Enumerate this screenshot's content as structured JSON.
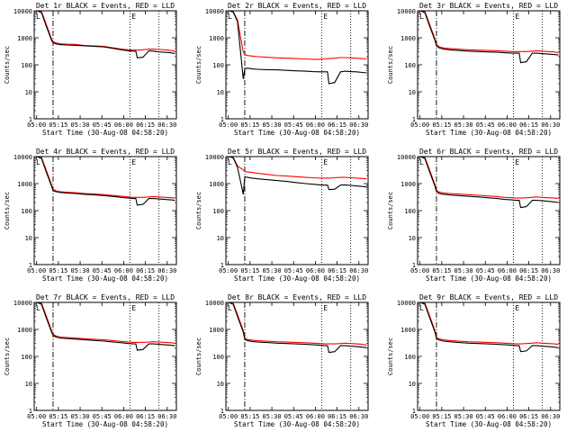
{
  "chart_data": [
    {
      "type": "line",
      "title": "Det 1r BLACK = Events, RED = LLD",
      "xlabel": "Start Time (30-Aug-08 04:58:20)",
      "ylabel": "Counts/sec",
      "x_ticks": [
        "05:00",
        "05:15",
        "05:30",
        "05:45",
        "06:00",
        "06:15",
        "06:30"
      ],
      "y_ticks": [
        "1",
        "10",
        "100",
        "1000",
        "10000"
      ],
      "xlim_minutes": [
        0,
        98
      ],
      "ylim": [
        1,
        10000
      ],
      "yscale": "log",
      "x": [
        0,
        2,
        5,
        8,
        12,
        13,
        15,
        18,
        22,
        28,
        35,
        42,
        48,
        55,
        60,
        65,
        68,
        70,
        71,
        75,
        79,
        82,
        86,
        90,
        94,
        97
      ],
      "series": [
        {
          "name": "Events",
          "color": "#000000",
          "values": [
            10000,
            10000,
            8500,
            3000,
            800,
            650,
            600,
            560,
            540,
            530,
            500,
            480,
            460,
            400,
            360,
            330,
            320,
            320,
            180,
            190,
            330,
            320,
            300,
            290,
            280,
            260
          ]
        },
        {
          "name": "LLD",
          "color": "#ff0000",
          "values": [
            10000,
            10000,
            9500,
            3500,
            900,
            720,
            640,
            600,
            580,
            570,
            520,
            500,
            480,
            420,
            380,
            360,
            350,
            350,
            350,
            360,
            380,
            380,
            370,
            360,
            340,
            320
          ]
        }
      ],
      "annotations": {
        "dash_dot_minute": 13,
        "dotted_minutes": [
          66,
          86
        ],
        "marker_labels": [
          "L",
          "E"
        ]
      }
    },
    {
      "type": "line",
      "title": "Det 2r BLACK = Events, RED = LLD",
      "xlabel": "Start Time (30-Aug-08 04:58:20)",
      "ylabel": "Counts/sec",
      "x_ticks": [
        "05:00",
        "05:15",
        "05:30",
        "05:45",
        "06:00",
        "06:15",
        "06:30"
      ],
      "y_ticks": [
        "1",
        "10",
        "100",
        "1000",
        "10000"
      ],
      "xlim_minutes": [
        0,
        98
      ],
      "ylim": [
        1,
        10000
      ],
      "yscale": "log",
      "x": [
        0,
        2,
        5,
        8,
        12,
        13,
        15,
        18,
        22,
        28,
        35,
        42,
        48,
        55,
        60,
        65,
        68,
        70,
        71,
        75,
        79,
        82,
        86,
        90,
        94,
        97
      ],
      "series": [
        {
          "name": "Events",
          "color": "#000000",
          "values": [
            10000,
            10000,
            9000,
            4000,
            30,
            70,
            75,
            70,
            68,
            66,
            65,
            62,
            60,
            58,
            56,
            55,
            55,
            55,
            20,
            22,
            55,
            58,
            56,
            55,
            52,
            50
          ]
        },
        {
          "name": "LLD",
          "color": "#ff0000",
          "values": [
            10000,
            10000,
            9500,
            4500,
            300,
            240,
            220,
            210,
            200,
            190,
            180,
            175,
            170,
            165,
            160,
            160,
            165,
            170,
            170,
            175,
            185,
            185,
            180,
            175,
            170,
            165
          ]
        }
      ],
      "annotations": {
        "dash_dot_minute": 13,
        "dotted_minutes": [
          66,
          86
        ],
        "marker_labels": [
          "L",
          "E"
        ]
      }
    },
    {
      "type": "line",
      "title": "Det 3r BLACK = Events, RED = LLD",
      "xlabel": "Start Time (30-Aug-08 04:58:20)",
      "ylabel": "Counts/sec",
      "x_ticks": [
        "05:00",
        "05:15",
        "05:30",
        "05:45",
        "06:00",
        "06:15",
        "06:30"
      ],
      "y_ticks": [
        "1",
        "10",
        "100",
        "1000",
        "10000"
      ],
      "xlim_minutes": [
        0,
        98
      ],
      "ylim": [
        1,
        10000
      ],
      "yscale": "log",
      "x": [
        0,
        2,
        5,
        8,
        12,
        13,
        15,
        18,
        22,
        28,
        35,
        42,
        48,
        55,
        60,
        65,
        68,
        70,
        71,
        75,
        79,
        82,
        86,
        90,
        94,
        97
      ],
      "series": [
        {
          "name": "Events",
          "color": "#000000",
          "values": [
            10000,
            10000,
            8500,
            3000,
            800,
            500,
            420,
            380,
            360,
            340,
            320,
            310,
            300,
            290,
            280,
            270,
            270,
            270,
            120,
            130,
            270,
            270,
            260,
            250,
            240,
            230
          ]
        },
        {
          "name": "LLD",
          "color": "#ff0000",
          "values": [
            10000,
            10000,
            9500,
            3500,
            900,
            560,
            460,
            420,
            400,
            380,
            360,
            350,
            340,
            330,
            320,
            310,
            310,
            310,
            310,
            310,
            320,
            330,
            320,
            310,
            300,
            280
          ]
        }
      ],
      "annotations": {
        "dash_dot_minute": 13,
        "dotted_minutes": [
          66,
          86
        ],
        "marker_labels": [
          "L",
          "E"
        ]
      }
    },
    {
      "type": "line",
      "title": "Det 4r BLACK = Events, RED = LLD",
      "xlabel": "Start Time (30-Aug-08 04:58:20)",
      "ylabel": "Counts/sec",
      "x_ticks": [
        "05:00",
        "05:15",
        "05:30",
        "05:45",
        "06:00",
        "06:15",
        "06:30"
      ],
      "y_ticks": [
        "1",
        "10",
        "100",
        "1000",
        "10000"
      ],
      "xlim_minutes": [
        0,
        98
      ],
      "ylim": [
        1,
        10000
      ],
      "yscale": "log",
      "x": [
        0,
        2,
        5,
        8,
        12,
        13,
        15,
        18,
        22,
        28,
        35,
        42,
        48,
        55,
        60,
        65,
        68,
        70,
        71,
        75,
        79,
        82,
        86,
        90,
        94,
        97
      ],
      "series": [
        {
          "name": "Events",
          "color": "#000000",
          "values": [
            10000,
            10000,
            8500,
            3000,
            800,
            550,
            500,
            470,
            450,
            430,
            400,
            380,
            360,
            330,
            310,
            290,
            280,
            280,
            160,
            170,
            280,
            280,
            270,
            260,
            250,
            240
          ]
        },
        {
          "name": "LLD",
          "color": "#ff0000",
          "values": [
            10000,
            10000,
            9500,
            3500,
            900,
            620,
            540,
            500,
            480,
            460,
            430,
            410,
            390,
            360,
            340,
            320,
            310,
            310,
            310,
            310,
            320,
            330,
            320,
            310,
            300,
            290
          ]
        }
      ],
      "annotations": {
        "dash_dot_minute": 13,
        "dotted_minutes": [
          66,
          86
        ],
        "marker_labels": [
          "L",
          "E"
        ]
      }
    },
    {
      "type": "line",
      "title": "Det 5r BLACK = Events, RED = LLD",
      "xlabel": "Start Time (30-Aug-08 04:58:20)",
      "ylabel": "Counts/sec",
      "x_ticks": [
        "05:00",
        "05:15",
        "05:30",
        "05:45",
        "06:00",
        "06:15",
        "06:30"
      ],
      "y_ticks": [
        "1",
        "10",
        "100",
        "1000",
        "10000"
      ],
      "xlim_minutes": [
        0,
        98
      ],
      "ylim": [
        1,
        10000
      ],
      "yscale": "log",
      "x": [
        0,
        2,
        5,
        8,
        12,
        13,
        15,
        18,
        22,
        28,
        35,
        42,
        48,
        55,
        60,
        65,
        68,
        70,
        71,
        75,
        79,
        82,
        86,
        90,
        94,
        97
      ],
      "series": [
        {
          "name": "Events",
          "color": "#000000",
          "values": [
            10000,
            10000,
            9000,
            4000,
            400,
            1800,
            1700,
            1600,
            1500,
            1400,
            1300,
            1200,
            1100,
            1000,
            950,
            900,
            880,
            880,
            600,
            620,
            880,
            900,
            860,
            820,
            780,
            750
          ]
        },
        {
          "name": "LLD",
          "color": "#ff0000",
          "values": [
            10000,
            10000,
            9500,
            4500,
            3200,
            2800,
            2700,
            2600,
            2400,
            2200,
            2000,
            1900,
            1800,
            1700,
            1650,
            1600,
            1600,
            1600,
            1600,
            1650,
            1700,
            1700,
            1650,
            1600,
            1550,
            1500
          ]
        }
      ],
      "annotations": {
        "dash_dot_minute": 13,
        "dotted_minutes": [
          66,
          86
        ],
        "marker_labels": [
          "L",
          "E"
        ]
      }
    },
    {
      "type": "line",
      "title": "Det 6r BLACK = Events, RED = LLD",
      "xlabel": "Start Time (30-Aug-08 04:58:20)",
      "ylabel": "Counts/sec",
      "x_ticks": [
        "05:00",
        "05:15",
        "05:30",
        "05:45",
        "06:00",
        "06:15",
        "06:30"
      ],
      "y_ticks": [
        "1",
        "10",
        "100",
        "1000",
        "10000"
      ],
      "xlim_minutes": [
        0,
        98
      ],
      "ylim": [
        1,
        10000
      ],
      "yscale": "log",
      "x": [
        0,
        2,
        5,
        8,
        12,
        13,
        15,
        18,
        22,
        28,
        35,
        42,
        48,
        55,
        60,
        65,
        68,
        70,
        71,
        75,
        79,
        82,
        86,
        90,
        94,
        97
      ],
      "series": [
        {
          "name": "Events",
          "color": "#000000",
          "values": [
            10000,
            10000,
            8500,
            3000,
            800,
            500,
            430,
            400,
            380,
            360,
            340,
            320,
            300,
            280,
            260,
            250,
            240,
            240,
            130,
            140,
            240,
            240,
            230,
            220,
            210,
            200
          ]
        },
        {
          "name": "LLD",
          "color": "#ff0000",
          "values": [
            10000,
            10000,
            9500,
            3500,
            900,
            560,
            480,
            450,
            430,
            410,
            390,
            370,
            350,
            330,
            310,
            300,
            290,
            290,
            290,
            300,
            310,
            320,
            310,
            300,
            290,
            280
          ]
        }
      ],
      "annotations": {
        "dash_dot_minute": 13,
        "dotted_minutes": [
          66,
          86
        ],
        "marker_labels": [
          "L",
          "E"
        ]
      }
    },
    {
      "type": "line",
      "title": "Det 7r BLACK = Events, RED = LLD",
      "xlabel": "Start Time (30-Aug-08 04:58:20)",
      "ylabel": "Counts/sec",
      "x_ticks": [
        "05:00",
        "05:15",
        "05:30",
        "05:45",
        "06:00",
        "06:15",
        "06:30"
      ],
      "y_ticks": [
        "1",
        "10",
        "100",
        "1000",
        "10000"
      ],
      "xlim_minutes": [
        0,
        98
      ],
      "ylim": [
        1,
        10000
      ],
      "yscale": "log",
      "x": [
        0,
        2,
        5,
        8,
        12,
        13,
        15,
        18,
        22,
        28,
        35,
        42,
        48,
        55,
        60,
        65,
        68,
        70,
        71,
        75,
        79,
        82,
        86,
        90,
        94,
        97
      ],
      "series": [
        {
          "name": "Events",
          "color": "#000000",
          "values": [
            10000,
            10000,
            8500,
            3000,
            800,
            600,
            520,
            480,
            460,
            440,
            410,
            390,
            370,
            340,
            320,
            300,
            290,
            290,
            170,
            180,
            290,
            290,
            280,
            270,
            260,
            250
          ]
        },
        {
          "name": "LLD",
          "color": "#ff0000",
          "values": [
            10000,
            10000,
            9500,
            3500,
            900,
            660,
            570,
            520,
            500,
            480,
            450,
            430,
            410,
            380,
            360,
            340,
            330,
            330,
            330,
            330,
            340,
            350,
            340,
            330,
            320,
            310
          ]
        }
      ],
      "annotations": {
        "dash_dot_minute": 13,
        "dotted_minutes": [
          66,
          86
        ],
        "marker_labels": [
          "L",
          "E"
        ]
      }
    },
    {
      "type": "line",
      "title": "Det 8r BLACK = Events, RED = LLD",
      "xlabel": "Start Time (30-Aug-08 04:58:20)",
      "ylabel": "Counts/sec",
      "x_ticks": [
        "05:00",
        "05:15",
        "05:30",
        "05:45",
        "06:00",
        "06:15",
        "06:30"
      ],
      "y_ticks": [
        "1",
        "10",
        "100",
        "1000",
        "10000"
      ],
      "xlim_minutes": [
        0,
        98
      ],
      "ylim": [
        1,
        10000
      ],
      "yscale": "log",
      "x": [
        0,
        2,
        5,
        8,
        12,
        13,
        15,
        18,
        22,
        28,
        35,
        42,
        48,
        55,
        60,
        65,
        68,
        70,
        71,
        75,
        79,
        82,
        86,
        90,
        94,
        97
      ],
      "series": [
        {
          "name": "Events",
          "color": "#000000",
          "values": [
            10000,
            10000,
            8500,
            3000,
            800,
            420,
            380,
            360,
            340,
            330,
            310,
            300,
            290,
            280,
            270,
            260,
            250,
            250,
            140,
            150,
            250,
            250,
            240,
            230,
            220,
            210
          ]
        },
        {
          "name": "LLD",
          "color": "#ff0000",
          "values": [
            10000,
            10000,
            9500,
            3500,
            900,
            470,
            420,
            400,
            380,
            370,
            350,
            340,
            330,
            320,
            310,
            300,
            290,
            290,
            290,
            290,
            300,
            310,
            300,
            290,
            280,
            260
          ]
        }
      ],
      "annotations": {
        "dash_dot_minute": 13,
        "dotted_minutes": [
          66,
          86
        ],
        "marker_labels": [
          "L",
          "E"
        ]
      }
    },
    {
      "type": "line",
      "title": "Det 9r BLACK = Events, RED = LLD",
      "xlabel": "Start Time (30-Aug-08 04:58:20)",
      "ylabel": "Counts/sec",
      "x_ticks": [
        "05:00",
        "05:15",
        "05:30",
        "05:45",
        "06:00",
        "06:15",
        "06:30"
      ],
      "y_ticks": [
        "1",
        "10",
        "100",
        "1000",
        "10000"
      ],
      "xlim_minutes": [
        0,
        98
      ],
      "ylim": [
        1,
        10000
      ],
      "yscale": "log",
      "x": [
        0,
        2,
        5,
        8,
        12,
        13,
        15,
        18,
        22,
        28,
        35,
        42,
        48,
        55,
        60,
        65,
        68,
        70,
        71,
        75,
        79,
        82,
        86,
        90,
        94,
        97
      ],
      "series": [
        {
          "name": "Events",
          "color": "#000000",
          "values": [
            10000,
            10000,
            8500,
            3000,
            800,
            450,
            400,
            370,
            350,
            330,
            310,
            300,
            290,
            280,
            270,
            260,
            250,
            250,
            150,
            160,
            250,
            250,
            240,
            230,
            220,
            210
          ]
        },
        {
          "name": "LLD",
          "color": "#ff0000",
          "values": [
            10000,
            10000,
            9500,
            3500,
            900,
            500,
            440,
            410,
            390,
            370,
            350,
            340,
            330,
            320,
            310,
            300,
            290,
            290,
            290,
            300,
            310,
            320,
            310,
            300,
            290,
            280
          ]
        }
      ],
      "annotations": {
        "dash_dot_minute": 13,
        "dotted_minutes": [
          66,
          86
        ],
        "marker_labels": [
          "L",
          "E"
        ]
      }
    }
  ]
}
